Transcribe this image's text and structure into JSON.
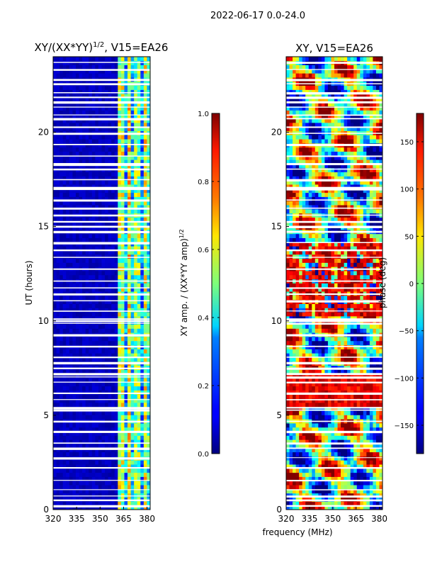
{
  "figure": {
    "suptitle": "2022-06-17 0.0-24.0",
    "shared_xlabel": "frequency (MHz)"
  },
  "chart_data": [
    {
      "type": "heatmap",
      "title_main": "XY/(XX*YY)",
      "title_exp": "1/2",
      "title_rest": ", V15=EA26",
      "xlabel": "frequency (MHz)",
      "ylabel": "UT (hours)",
      "xlim": [
        320,
        382
      ],
      "ylim": [
        0,
        24
      ],
      "xticks": [
        320,
        335,
        350,
        365,
        380
      ],
      "yticks": [
        0,
        5,
        10,
        15,
        20
      ],
      "colormap": "jet",
      "colorbar": {
        "label_main": "XY amp. / (XX*YY amp)",
        "label_exp": "1/2",
        "min": 0.0,
        "max": 1.0,
        "ticks": [
          "0.0",
          "0.2",
          "0.4",
          "0.6",
          "0.8",
          "1.0"
        ],
        "tick_values": [
          0.0,
          0.2,
          0.4,
          0.6,
          0.8,
          1.0
        ]
      },
      "description": "normalized XY amplitude vs frequency and UT; mostly low (~0.05) below ~362 MHz, elevated (0.3-0.7) in channels 362-382 MHz; white horizontal gaps are flagged times"
    },
    {
      "type": "heatmap",
      "title": "XY, V15=EA26",
      "xlabel": "frequency (MHz)",
      "ylabel": "",
      "xlim": [
        320,
        382
      ],
      "ylim": [
        0,
        24
      ],
      "xticks": [
        320,
        335,
        350,
        365,
        380
      ],
      "yticks": [
        0,
        5,
        10,
        15,
        20
      ],
      "colormap": "jet",
      "colorbar": {
        "label": "phase (deg)",
        "min": -180,
        "max": 180,
        "ticks": [
          "150",
          "100",
          "50",
          "0",
          "−50",
          "−100",
          "−150"
        ],
        "tick_values": [
          150,
          100,
          50,
          0,
          -50,
          -100,
          -150
        ]
      },
      "description": "XY phase vs frequency and UT; noisy phase pattern in full jet range with coherent red/orange (~+150 deg) stretch around 5.5-7 h and 10-14 h"
    }
  ]
}
